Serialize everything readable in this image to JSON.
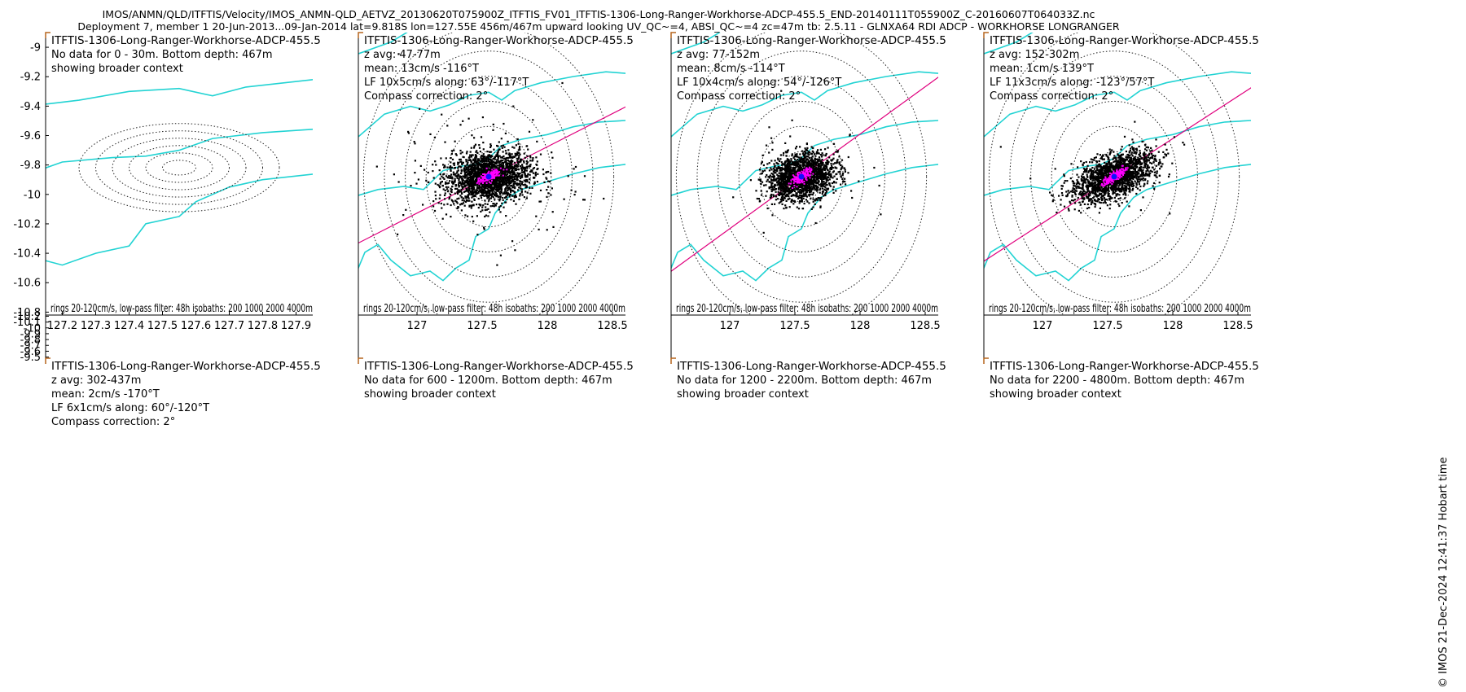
{
  "header": {
    "line1": "IMOS/ANMN/QLD/ITFTIS/Velocity/IMOS_ANMN-QLD_AETVZ_20130620T075900Z_ITFTIS_FV01_ITFTIS-1306-Long-Ranger-Workhorse-ADCP-455.5_END-20140111T055900Z_C-20160607T064033Z.nc",
    "line2": "Deployment 7, member 1 20-Jun-2013...09-Jan-2014 lat=9.818S lon=127.55E 456m/467m upward looking UV_QC~=4, ABSI_QC~=4 zc=47m tb: 2.5.11 - GLNXA64 RDI ADCP - WORKHORSE LONGRANGER"
  },
  "side_note": "© IMOS 21-Dec-2024 12:41:37 Hobart time",
  "colors": {
    "isobath": "#22d3d3",
    "scatter": "#000000",
    "lowpass": "#ff00ff",
    "axis": "#e0007e",
    "rings": "#222222",
    "mean": "#1010ff"
  },
  "chart_data": [
    {
      "type": "scatter",
      "title": "ITFTIS-1306-Long-Ranger-Workhorse-ADCP-455.5",
      "info": [
        "No data for 0 - 30m. Bottom depth: 467m",
        "showing broader context"
      ],
      "has_data": false,
      "xlim": [
        127.15,
        127.95
      ],
      "ylim": [
        -10.82,
        -8.9
      ],
      "xticks": [],
      "xticklabels": [],
      "yticks": [
        -9,
        -9.2,
        -9.4,
        -9.6,
        -9.8,
        -10,
        -10.2,
        -10.4,
        -10.6,
        -10.8
      ],
      "yticklabels": [
        "-9",
        "-9.2",
        "-9.4",
        "-9.6",
        "-9.8",
        "-10",
        "-10.2",
        "-10.4",
        "-10.6",
        "-10.8"
      ],
      "center": [
        127.55,
        -9.818
      ],
      "ring_step_deg": 0.05,
      "rings": 6,
      "footer": ""
    },
    {
      "type": "scatter",
      "title": "ITFTIS-1306-Long-Ranger-Workhorse-ADCP-455.5",
      "info": [
        "z avg: 47-77m",
        "mean: 13cm/s -116°T",
        "LF 10x5cm/s along: 63°/-117°T",
        "Compass correction: 2°"
      ],
      "has_data": true,
      "xlim": [
        126.55,
        128.6
      ],
      "ylim": [
        -10.7,
        -8.9
      ],
      "xticks": [],
      "xticklabels": [],
      "yticks": [],
      "yticklabels": [],
      "center": [
        127.55,
        -9.818
      ],
      "ring_step_deg": 0.16,
      "rings": 6,
      "cloud": {
        "sx": 0.32,
        "sy": 0.19,
        "rot": 8,
        "outliers": 140,
        "n": 2000
      },
      "lowpass": {
        "sx": 0.09,
        "sy": 0.035,
        "rot": 28,
        "n": 180
      },
      "axis_angle_deg": 27,
      "footer": "rings 20-120cm/s, low-pass filter: 48h isobaths: 200 1000 2000 4000m"
    },
    {
      "type": "scatter",
      "title": "ITFTIS-1306-Long-Ranger-Workhorse-ADCP-455.5",
      "info": [
        "z avg: 77-152m",
        "mean: 8cm/s -114°T",
        "LF 10x4cm/s along: 54°/-126°T",
        "Compass correction: 2°"
      ],
      "has_data": true,
      "xlim": [
        126.55,
        128.6
      ],
      "ylim": [
        -10.7,
        -8.9
      ],
      "xticks": [],
      "xticklabels": [],
      "yticks": [],
      "yticklabels": [],
      "center": [
        127.55,
        -9.818
      ],
      "ring_step_deg": 0.16,
      "rings": 6,
      "cloud": {
        "sx": 0.26,
        "sy": 0.17,
        "rot": 15,
        "outliers": 30,
        "n": 1800
      },
      "lowpass": {
        "sx": 0.09,
        "sy": 0.035,
        "rot": 36,
        "n": 180
      },
      "axis_angle_deg": 36,
      "footer": "rings 20-120cm/s, low-pass filter: 48h isobaths: 200 1000 2000 4000m"
    },
    {
      "type": "scatter",
      "title": "ITFTIS-1306-Long-Ranger-Workhorse-ADCP-455.5",
      "info": [
        "z avg: 152-302m",
        "mean: 1cm/s 139°T",
        "LF 11x3cm/s along: -123°/57°T",
        "Compass correction: 2°"
      ],
      "has_data": true,
      "xlim": [
        126.55,
        128.6
      ],
      "ylim": [
        -10.7,
        -8.9
      ],
      "xticks": [],
      "xticklabels": [],
      "yticks": [],
      "yticklabels": [],
      "center": [
        127.55,
        -9.818
      ],
      "ring_step_deg": 0.16,
      "rings": 6,
      "cloud": {
        "sx": 0.33,
        "sy": 0.15,
        "rot": 24,
        "outliers": 10,
        "n": 1800
      },
      "lowpass": {
        "sx": 0.1,
        "sy": 0.03,
        "rot": 33,
        "n": 180
      },
      "axis_angle_deg": 33,
      "footer": "rings 20-120cm/s, low-pass filter: 48h isobaths: 200 1000 2000 4000m"
    },
    {
      "type": "scatter",
      "title": "ITFTIS-1306-Long-Ranger-Workhorse-ADCP-455.5",
      "info": [
        "z avg: 302-437m",
        "mean: 2cm/s -170°T",
        "LF 6x1cm/s along: 60°/-120°T",
        "Compass correction: 2°"
      ],
      "has_data": true,
      "xlim": [
        127.15,
        127.95
      ],
      "ylim": [
        -10.22,
        -9.48
      ],
      "xticks": [
        127.2,
        127.3,
        127.4,
        127.5,
        127.6,
        127.7,
        127.8,
        127.9
      ],
      "xticklabels": [
        "127.2",
        "127.3",
        "127.4",
        "127.5",
        "127.6",
        "127.7",
        "127.8",
        "127.9"
      ],
      "yticks": [
        -9.5,
        -9.6,
        -9.7,
        -9.8,
        -9.9,
        -10,
        -10.1,
        -10.2
      ],
      "yticklabels": [
        "-9.5",
        "-9.6",
        "-9.7",
        "-9.8",
        "-9.9",
        "-10",
        "-10.1",
        "-10.2"
      ],
      "center": [
        127.55,
        -9.818
      ],
      "ring_step_deg": 0.06,
      "rings": 6,
      "cloud": {
        "sx": 0.065,
        "sy": 0.045,
        "rot": 70,
        "outliers": 5,
        "n": 1800
      },
      "lowpass": {
        "sx": 0.03,
        "sy": 0.008,
        "rot": 30,
        "n": 160
      },
      "axis_angle_deg": 30,
      "footer": "rings 20-120cm/s, low-pass filter: 48h isobaths: 200 1000 2000 4000m"
    },
    {
      "type": "scatter",
      "title": "ITFTIS-1306-Long-Ranger-Workhorse-ADCP-455.5",
      "info": [
        "No data for 600 - 1200m. Bottom depth: 467m",
        "showing broader context"
      ],
      "has_data": false,
      "xlim": [
        126.55,
        128.6
      ],
      "ylim": [
        -10.7,
        -8.9
      ],
      "xticks": [
        127,
        127.5,
        128,
        128.5
      ],
      "xticklabels": [
        "127",
        "127.5",
        "128",
        "128.5"
      ],
      "yticks": [],
      "yticklabels": [],
      "center": [
        127.55,
        -9.818
      ],
      "ring_step_deg": 0.1,
      "rings": 6,
      "footer": ""
    },
    {
      "type": "scatter",
      "title": "ITFTIS-1306-Long-Ranger-Workhorse-ADCP-455.5",
      "info": [
        "No data for 1200 - 2200m. Bottom depth: 467m",
        "showing broader context"
      ],
      "has_data": false,
      "xlim": [
        126.55,
        128.6
      ],
      "ylim": [
        -10.7,
        -8.9
      ],
      "xticks": [
        127,
        127.5,
        128,
        128.5
      ],
      "xticklabels": [
        "127",
        "127.5",
        "128",
        "128.5"
      ],
      "yticks": [],
      "yticklabels": [],
      "center": [
        127.55,
        -9.818
      ],
      "ring_step_deg": 0.1,
      "rings": 6,
      "footer": ""
    },
    {
      "type": "scatter",
      "title": "ITFTIS-1306-Long-Ranger-Workhorse-ADCP-455.5",
      "info": [
        "No data for 2200 - 4800m. Bottom depth: 467m",
        "showing broader context"
      ],
      "has_data": false,
      "xlim": [
        126.55,
        128.6
      ],
      "ylim": [
        -10.7,
        -8.9
      ],
      "xticks": [
        127,
        127.5,
        128,
        128.5
      ],
      "xticklabels": [
        "127",
        "127.5",
        "128",
        "128.5"
      ],
      "yticks": [],
      "yticklabels": [],
      "center": [
        127.55,
        -9.818
      ],
      "ring_step_deg": 0.1,
      "rings": 6,
      "footer": ""
    }
  ],
  "isobaths": [
    {
      "depth": 200,
      "lon": [
        126.5,
        126.8,
        127.0,
        127.15,
        127.3,
        127.45,
        127.6,
        127.8,
        128.0,
        128.3,
        128.6
      ],
      "lat": [
        -9.05,
        -8.96,
        -8.86,
        -8.85,
        -8.8,
        -8.72,
        -8.66,
        -8.6,
        -8.55,
        -8.5,
        -8.45
      ]
    },
    {
      "depth": 1000,
      "lon": [
        126.5,
        126.75,
        126.95,
        127.1,
        127.25,
        127.4,
        127.55,
        127.65,
        127.75,
        127.95,
        128.2,
        128.45,
        128.6
      ],
      "lat": [
        -9.6,
        -9.42,
        -9.37,
        -9.4,
        -9.36,
        -9.3,
        -9.28,
        -9.33,
        -9.27,
        -9.22,
        -9.18,
        -9.15,
        -9.16
      ]
    },
    {
      "depth": 2000,
      "lon": [
        126.5,
        126.7,
        126.9,
        127.05,
        127.2,
        127.35,
        127.45,
        127.55,
        127.65,
        127.8,
        128.0,
        128.2,
        128.4,
        128.6
      ],
      "lat": [
        -9.95,
        -9.9,
        -9.88,
        -9.9,
        -9.78,
        -9.75,
        -9.74,
        -9.7,
        -9.62,
        -9.58,
        -9.55,
        -9.5,
        -9.47,
        -9.46
      ]
    },
    {
      "depth": 4000,
      "lon": [
        126.5,
        126.6,
        126.7,
        126.8,
        126.95,
        127.1,
        127.2,
        127.3,
        127.4,
        127.45,
        127.55,
        127.6,
        127.7,
        127.8,
        128.0,
        128.2,
        128.4,
        128.6
      ],
      "lat": [
        -10.5,
        -10.3,
        -10.25,
        -10.35,
        -10.45,
        -10.42,
        -10.48,
        -10.4,
        -10.35,
        -10.2,
        -10.15,
        -10.05,
        -9.95,
        -9.9,
        -9.85,
        -9.8,
        -9.76,
        -9.74
      ]
    }
  ]
}
